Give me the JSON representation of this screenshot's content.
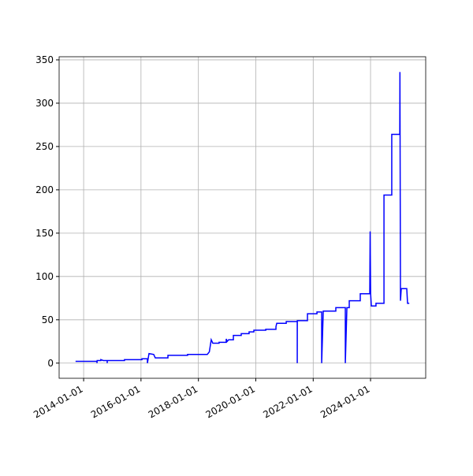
{
  "chart_data": {
    "type": "line",
    "color": "#0000ff",
    "grid": true,
    "xlim": [
      "2013-02-23",
      "2025-12-03"
    ],
    "xticks": [
      "2014-01-01",
      "2016-01-01",
      "2018-01-01",
      "2020-01-01",
      "2022-01-01",
      "2024-01-01"
    ],
    "ylim": [
      -17.5,
      353.6
    ],
    "yticks": [
      0,
      50,
      100,
      150,
      200,
      250,
      300,
      350
    ],
    "x": [
      "2013-09-20",
      "2014-06-20",
      "2014-06-20",
      "2014-06-22",
      "2014-08-08",
      "2014-08-08",
      "2014-09-08",
      "2014-10-28",
      "2014-10-28",
      "2014-10-29",
      "2015-06-05",
      "2015-06-05",
      "2016-01-13",
      "2016-01-13",
      "2016-03-23",
      "2016-03-23",
      "2016-04-12",
      "2016-06-11",
      "2016-07-01",
      "2016-12-09",
      "2016-12-09",
      "2017-08-16",
      "2017-08-16",
      "2018-04-24",
      "2018-05-20",
      "2018-06-13",
      "2018-07-03",
      "2018-09-21",
      "2018-09-21",
      "2018-12-21",
      "2018-12-21",
      "2019-01-01",
      "2019-01-21",
      "2019-03-22",
      "2019-03-22",
      "2019-06-30",
      "2019-06-30",
      "2019-10-08",
      "2019-10-08",
      "2019-12-08",
      "2019-12-08",
      "2020-05-07",
      "2020-05-07",
      "2020-09-14",
      "2020-09-14",
      "2020-09-24",
      "2021-01-23",
      "2021-01-23",
      "2021-06-12",
      "2021-06-12",
      "2021-06-13",
      "2021-10-20",
      "2021-10-20",
      "2022-02-18",
      "2022-02-18",
      "2022-04-19",
      "2022-04-19",
      "2022-05-09",
      "2022-10-16",
      "2022-10-16",
      "2023-02-14",
      "2023-02-14",
      "2023-03-06",
      "2023-04-05",
      "2023-04-05",
      "2023-08-23",
      "2023-08-23",
      "2023-12-22",
      "2023-12-27",
      "2024-01-02",
      "2024-01-11",
      "2024-03-10",
      "2024-03-10",
      "2024-06-20",
      "2024-06-20",
      "2024-09-27",
      "2024-09-27",
      "2025-01-07",
      "2025-01-09",
      "2025-01-16",
      "2025-01-26",
      "2025-04-06",
      "2025-04-16",
      "2025-05-08"
    ],
    "values": [
      2,
      2,
      0,
      3,
      3,
      4,
      3,
      3,
      0,
      3,
      3,
      4,
      4,
      5,
      5,
      0,
      11,
      10,
      6,
      6,
      9,
      9,
      10,
      10,
      13,
      27,
      23,
      23,
      24,
      24,
      28,
      25,
      27,
      27,
      32,
      32,
      34,
      34,
      36,
      36,
      38,
      38,
      39,
      39,
      42,
      46,
      46,
      48,
      48,
      0,
      49,
      49,
      57,
      57,
      59,
      59,
      0,
      60,
      60,
      64,
      64,
      0,
      64,
      64,
      72,
      72,
      80,
      80,
      152,
      80,
      66,
      66,
      69,
      69,
      194,
      194,
      264,
      264,
      336,
      72,
      86,
      86,
      69,
      69
    ]
  }
}
